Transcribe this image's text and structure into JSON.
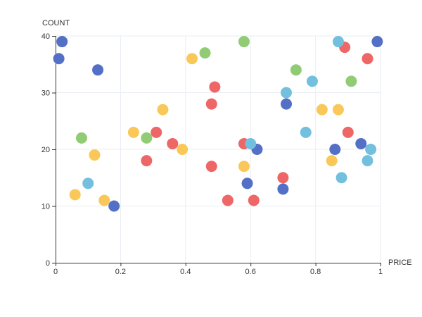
{
  "chart_data": {
    "type": "scatter",
    "xlabel": "PRICE",
    "ylabel": "COUNT",
    "xlim": [
      0,
      1
    ],
    "ylim": [
      0,
      40
    ],
    "x_ticks": [
      0,
      0.2,
      0.4,
      0.6,
      0.8,
      1
    ],
    "y_ticks": [
      0,
      10,
      20,
      30,
      40
    ],
    "x_tick_labels": [
      "0",
      "0.2",
      "0.4",
      "0.6",
      "0.8",
      "1"
    ],
    "y_tick_labels": [
      "0",
      "10",
      "20",
      "30",
      "40"
    ],
    "grid": true,
    "legend": false,
    "colors": {
      "red": "#ee6666",
      "blue": "#5470c6",
      "green": "#91cc75",
      "yellow": "#fac858",
      "cyan": "#73c0de"
    },
    "series": [
      {
        "color_key": "red",
        "points": [
          [
            0.28,
            18
          ],
          [
            0.31,
            23
          ],
          [
            0.36,
            21
          ],
          [
            0.48,
            28
          ],
          [
            0.49,
            31
          ],
          [
            0.48,
            17
          ],
          [
            0.53,
            11
          ],
          [
            0.58,
            21
          ],
          [
            0.61,
            11
          ],
          [
            0.7,
            15
          ],
          [
            0.89,
            38
          ],
          [
            0.9,
            23
          ],
          [
            0.96,
            36
          ]
        ]
      },
      {
        "color_key": "blue",
        "points": [
          [
            0.01,
            36
          ],
          [
            0.02,
            39
          ],
          [
            0.13,
            34
          ],
          [
            0.18,
            10
          ],
          [
            0.59,
            14
          ],
          [
            0.62,
            20
          ],
          [
            0.7,
            13
          ],
          [
            0.71,
            28
          ],
          [
            0.86,
            20
          ],
          [
            0.94,
            21
          ],
          [
            0.99,
            39
          ]
        ]
      },
      {
        "color_key": "green",
        "points": [
          [
            0.08,
            22
          ],
          [
            0.28,
            22
          ],
          [
            0.46,
            37
          ],
          [
            0.58,
            39
          ],
          [
            0.74,
            34
          ],
          [
            0.91,
            32
          ]
        ]
      },
      {
        "color_key": "yellow",
        "points": [
          [
            0.06,
            12
          ],
          [
            0.12,
            19
          ],
          [
            0.15,
            11
          ],
          [
            0.24,
            23
          ],
          [
            0.33,
            27
          ],
          [
            0.39,
            20
          ],
          [
            0.42,
            36
          ],
          [
            0.58,
            17
          ],
          [
            0.82,
            27
          ],
          [
            0.85,
            18
          ],
          [
            0.87,
            27
          ]
        ]
      },
      {
        "color_key": "cyan",
        "points": [
          [
            0.1,
            14
          ],
          [
            0.6,
            21
          ],
          [
            0.71,
            30
          ],
          [
            0.77,
            23
          ],
          [
            0.79,
            32
          ],
          [
            0.87,
            39
          ],
          [
            0.88,
            15
          ],
          [
            0.96,
            18
          ],
          [
            0.97,
            20
          ]
        ]
      }
    ]
  }
}
